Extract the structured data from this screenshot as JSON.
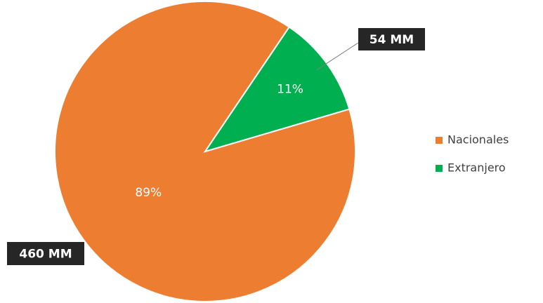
{
  "chart_data": {
    "type": "pie",
    "categories": [
      "Nacionales",
      "Extranjero"
    ],
    "values": [
      89,
      11
    ],
    "value_labels": [
      "89%",
      "11%"
    ],
    "amounts": [
      460,
      54
    ],
    "amount_labels": [
      "460 MM",
      "54 MM"
    ],
    "colors": [
      "#ED7D31",
      "#00B050"
    ],
    "legend": "right"
  }
}
